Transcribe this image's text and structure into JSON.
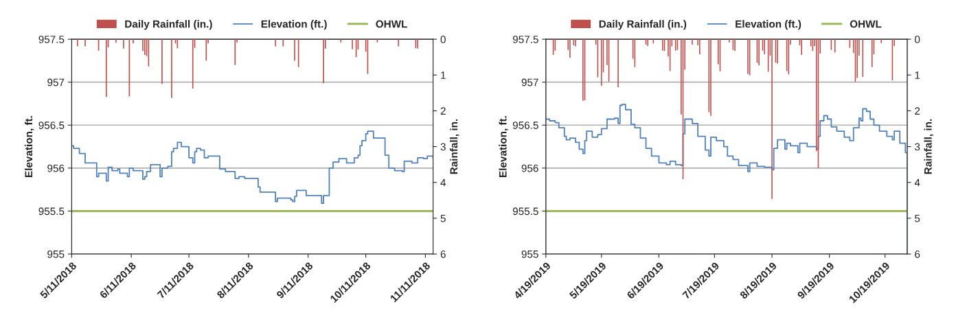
{
  "chart_data": [
    {
      "type": "bar",
      "ylabel": "Elevation, ft.",
      "y2label": "Rainfall, in.",
      "ylim": [
        955,
        957.5
      ],
      "yticks": [
        955,
        955.5,
        956,
        956.5,
        957,
        957.5
      ],
      "y2lim": [
        6,
        0
      ],
      "y2ticks": [
        0,
        1,
        2,
        3,
        4,
        5,
        6
      ],
      "xlim": [
        "2018-05-11",
        "2018-11-15"
      ],
      "xticks": [
        {
          "value": "2018-05-11",
          "label": "5/11/2018"
        },
        {
          "value": "2018-06-11",
          "label": "6/11/2018"
        },
        {
          "value": "2018-07-11",
          "label": "7/11/2018"
        },
        {
          "value": "2018-08-11",
          "label": "8/11/2018"
        },
        {
          "value": "2018-09-11",
          "label": "9/11/2018"
        },
        {
          "value": "2018-10-11",
          "label": "10/11/2018"
        },
        {
          "value": "2018-11-11",
          "label": "11/11/2018"
        }
      ],
      "grid": "y",
      "legend": "top",
      "ref_lines": [
        {
          "axis": "y",
          "value": 955.5,
          "label": "OHWL",
          "color": "#9bbb59"
        }
      ],
      "series": [
        {
          "name": "Daily Rainfall (in.)",
          "axis": "y2",
          "color": "#c0504d",
          "x": [
            "2018-05-14",
            "2018-05-18",
            "2018-05-25",
            "2018-05-29",
            "2018-05-30",
            "2018-06-03",
            "2018-06-07",
            "2018-06-10",
            "2018-06-12",
            "2018-06-17",
            "2018-06-18",
            "2018-06-19",
            "2018-06-20",
            "2018-06-27",
            "2018-07-02",
            "2018-07-04",
            "2018-07-05",
            "2018-07-13",
            "2018-07-14",
            "2018-07-20",
            "2018-07-21",
            "2018-08-04",
            "2018-08-05",
            "2018-08-25",
            "2018-08-29",
            "2018-09-04",
            "2018-09-06",
            "2018-09-19",
            "2018-09-20",
            "2018-09-28",
            "2018-10-04",
            "2018-10-06",
            "2018-10-07",
            "2018-10-11",
            "2018-10-12",
            "2018-10-17",
            "2018-10-28",
            "2018-11-06",
            "2018-11-07"
          ],
          "values": [
            0.2,
            0.2,
            0.32,
            1.61,
            0.23,
            0.1,
            0.26,
            1.6,
            0.12,
            0.33,
            0.44,
            0.47,
            0.76,
            1.25,
            1.64,
            0.12,
            0.25,
            1.38,
            0.24,
            0.6,
            0.12,
            0.72,
            0.09,
            0.2,
            0.2,
            0.6,
            0.78,
            1.23,
            0.26,
            0.09,
            0.28,
            0.5,
            0.29,
            0.35,
            0.97,
            0.09,
            0.2,
            0.25,
            0.26
          ]
        },
        {
          "name": "Elevation (ft.)",
          "type": "step",
          "color": "#4f81bd",
          "x": [
            "2018-05-11",
            "2018-05-12",
            "2018-05-15",
            "2018-05-18",
            "2018-05-24",
            "2018-05-25",
            "2018-05-29",
            "2018-05-30",
            "2018-06-01",
            "2018-06-04",
            "2018-06-05",
            "2018-06-09",
            "2018-06-10",
            "2018-06-12",
            "2018-06-17",
            "2018-06-18",
            "2018-06-19",
            "2018-06-21",
            "2018-06-22",
            "2018-06-26",
            "2018-06-27",
            "2018-06-30",
            "2018-07-02",
            "2018-07-03",
            "2018-07-05",
            "2018-07-07",
            "2018-07-11",
            "2018-07-13",
            "2018-07-14",
            "2018-07-15",
            "2018-07-17",
            "2018-07-19",
            "2018-07-21",
            "2018-07-27",
            "2018-07-30",
            "2018-08-04",
            "2018-08-06",
            "2018-08-09",
            "2018-08-16",
            "2018-08-17",
            "2018-08-25",
            "2018-08-26",
            "2018-09-02",
            "2018-09-03",
            "2018-09-04",
            "2018-09-05",
            "2018-09-10",
            "2018-09-18",
            "2018-09-19",
            "2018-09-21",
            "2018-09-22",
            "2018-09-24",
            "2018-09-27",
            "2018-10-01",
            "2018-10-04",
            "2018-10-05",
            "2018-10-07",
            "2018-10-08",
            "2018-10-09",
            "2018-10-11",
            "2018-10-12",
            "2018-10-15",
            "2018-10-21",
            "2018-10-23",
            "2018-10-26",
            "2018-10-30",
            "2018-10-31",
            "2018-11-04",
            "2018-11-07",
            "2018-11-10",
            "2018-11-12",
            "2018-11-15"
          ],
          "values": [
            956.26,
            956.23,
            956.17,
            956.06,
            955.9,
            955.94,
            955.85,
            956.01,
            955.97,
            955.99,
            955.94,
            955.9,
            956.0,
            955.97,
            955.87,
            955.9,
            955.96,
            956.04,
            956.04,
            955.9,
            956.0,
            956.02,
            956.19,
            956.23,
            956.3,
            956.25,
            956.12,
            956.06,
            956.19,
            956.23,
            956.21,
            956.12,
            956.14,
            955.99,
            955.96,
            955.88,
            955.9,
            955.88,
            955.78,
            955.72,
            955.61,
            955.65,
            955.63,
            955.61,
            955.67,
            955.74,
            955.68,
            955.59,
            955.68,
            955.68,
            956.0,
            956.07,
            956.11,
            956.06,
            956.06,
            956.12,
            956.15,
            956.26,
            956.32,
            956.4,
            956.43,
            956.35,
            956.15,
            956.0,
            955.97,
            955.96,
            956.08,
            956.06,
            956.12,
            956.11,
            956.14,
            956.11
          ]
        }
      ]
    },
    {
      "type": "bar",
      "ylabel": "Elevation, ft.",
      "y2label": "Rainfall, in.",
      "ylim": [
        955,
        957.5
      ],
      "yticks": [
        955,
        955.5,
        956,
        956.5,
        957,
        957.5
      ],
      "y2lim": [
        6,
        0
      ],
      "y2ticks": [
        0,
        1,
        2,
        3,
        4,
        5,
        6
      ],
      "xlim": [
        "2019-04-19",
        "2019-10-31"
      ],
      "xticks": [
        {
          "value": "2019-04-19",
          "label": "4/19/2019"
        },
        {
          "value": "2019-05-19",
          "label": "5/19/2019"
        },
        {
          "value": "2019-06-19",
          "label": "6/19/2019"
        },
        {
          "value": "2019-07-19",
          "label": "7/19/2019"
        },
        {
          "value": "2019-08-19",
          "label": "8/19/2019"
        },
        {
          "value": "2019-09-19",
          "label": "9/19/2019"
        },
        {
          "value": "2019-10-19",
          "label": "10/19/2019"
        }
      ],
      "grid": "y",
      "legend": "top",
      "ref_lines": [
        {
          "axis": "y",
          "value": 955.5,
          "label": "OHWL",
          "color": "#9bbb59"
        }
      ],
      "series": [
        {
          "name": "Daily Rainfall (in.)",
          "axis": "y2",
          "color": "#c0504d",
          "x": [
            "2019-04-23",
            "2019-04-24",
            "2019-05-01",
            "2019-05-02",
            "2019-05-04",
            "2019-05-05",
            "2019-05-09",
            "2019-05-10",
            "2019-05-16",
            "2019-05-17",
            "2019-05-19",
            "2019-05-20",
            "2019-05-22",
            "2019-05-23",
            "2019-05-28",
            "2019-06-05",
            "2019-06-06",
            "2019-06-12",
            "2019-06-13",
            "2019-06-16",
            "2019-06-21",
            "2019-06-22",
            "2019-06-24",
            "2019-06-25",
            "2019-06-26",
            "2019-06-28",
            "2019-06-29",
            "2019-07-01",
            "2019-07-02",
            "2019-07-03",
            "2019-07-07",
            "2019-07-10",
            "2019-07-11",
            "2019-07-16",
            "2019-07-17",
            "2019-07-21",
            "2019-07-22",
            "2019-07-27",
            "2019-07-29",
            "2019-07-30",
            "2019-08-06",
            "2019-08-07",
            "2019-08-11",
            "2019-08-12",
            "2019-08-14",
            "2019-08-15",
            "2019-08-17",
            "2019-08-18",
            "2019-08-19",
            "2019-08-21",
            "2019-08-22",
            "2019-08-27",
            "2019-08-28",
            "2019-08-29",
            "2019-09-03",
            "2019-09-04",
            "2019-09-09",
            "2019-09-10",
            "2019-09-11",
            "2019-09-12",
            "2019-09-13",
            "2019-09-14",
            "2019-09-20",
            "2019-09-22",
            "2019-09-30",
            "2019-10-02",
            "2019-10-03",
            "2019-10-04",
            "2019-10-05",
            "2019-10-07",
            "2019-10-12",
            "2019-10-13",
            "2019-10-17",
            "2019-10-23",
            "2019-10-24"
          ],
          "values": [
            0.44,
            0.32,
            0.3,
            0.52,
            0.17,
            0.2,
            1.72,
            1.71,
            0.15,
            1.06,
            1.3,
            0.93,
            0.72,
            1.18,
            1.34,
            0.55,
            0.78,
            0.15,
            0.19,
            0.12,
            0.32,
            0.33,
            0.48,
            0.89,
            0.2,
            0.32,
            0.3,
            2.1,
            3.91,
            0.85,
            0.15,
            0.17,
            0.42,
            2.04,
            2.14,
            0.7,
            0.9,
            0.09,
            0.3,
            0.33,
            0.97,
            1.01,
            0.66,
            0.73,
            0.32,
            0.42,
            0.91,
            0.46,
            4.46,
            0.65,
            0.68,
            0.89,
            0.98,
            0.15,
            0.17,
            0.44,
            0.2,
            0.33,
            0.19,
            3.13,
            3.6,
            0.4,
            0.3,
            0.37,
            0.24,
            0.38,
            1.19,
            1.08,
            0.46,
            1.05,
            0.78,
            0.42,
            0.11,
            1.15,
            0.19
          ]
        },
        {
          "name": "Elevation (ft.)",
          "type": "step",
          "color": "#4f81bd",
          "x": [
            "2019-04-19",
            "2019-04-21",
            "2019-04-24",
            "2019-04-26",
            "2019-04-29",
            "2019-04-30",
            "2019-05-02",
            "2019-05-05",
            "2019-05-07",
            "2019-05-09",
            "2019-05-10",
            "2019-05-11",
            "2019-05-14",
            "2019-05-17",
            "2019-05-19",
            "2019-05-22",
            "2019-05-26",
            "2019-05-28",
            "2019-05-29",
            "2019-05-30",
            "2019-06-01",
            "2019-06-04",
            "2019-06-06",
            "2019-06-09",
            "2019-06-12",
            "2019-06-15",
            "2019-06-19",
            "2019-06-23",
            "2019-06-25",
            "2019-06-28",
            "2019-07-01",
            "2019-07-02",
            "2019-07-03",
            "2019-07-07",
            "2019-07-10",
            "2019-07-14",
            "2019-07-16",
            "2019-07-17",
            "2019-07-20",
            "2019-07-24",
            "2019-07-26",
            "2019-07-29",
            "2019-08-01",
            "2019-08-06",
            "2019-08-07",
            "2019-08-11",
            "2019-08-15",
            "2019-08-19",
            "2019-08-20",
            "2019-08-22",
            "2019-08-26",
            "2019-08-27",
            "2019-08-29",
            "2019-09-02",
            "2019-09-03",
            "2019-09-07",
            "2019-09-12",
            "2019-09-13",
            "2019-09-14",
            "2019-09-16",
            "2019-09-18",
            "2019-09-20",
            "2019-09-23",
            "2019-09-27",
            "2019-09-30",
            "2019-10-02",
            "2019-10-05",
            "2019-10-06",
            "2019-10-07",
            "2019-10-09",
            "2019-10-11",
            "2019-10-13",
            "2019-10-16",
            "2019-10-20",
            "2019-10-23",
            "2019-10-24",
            "2019-10-27",
            "2019-10-30",
            "2019-10-31"
          ],
          "values": [
            956.57,
            956.55,
            956.53,
            956.47,
            956.37,
            956.33,
            956.35,
            956.3,
            956.22,
            956.17,
            956.32,
            956.43,
            956.36,
            956.39,
            956.46,
            956.57,
            956.58,
            956.52,
            956.73,
            956.74,
            956.68,
            956.51,
            956.47,
            956.35,
            956.23,
            956.14,
            956.06,
            956.04,
            956.08,
            956.04,
            956.03,
            956.4,
            956.57,
            956.52,
            956.37,
            956.21,
            956.14,
            956.36,
            956.32,
            956.25,
            956.14,
            956.1,
            956.03,
            955.96,
            956.06,
            956.02,
            956.01,
            955.98,
            956.23,
            956.33,
            956.22,
            956.29,
            956.26,
            956.18,
            956.29,
            956.25,
            956.22,
            956.37,
            956.55,
            956.61,
            956.57,
            956.48,
            956.43,
            956.36,
            956.32,
            956.47,
            956.58,
            956.55,
            956.69,
            956.66,
            956.57,
            956.5,
            956.43,
            956.37,
            956.33,
            956.43,
            956.29,
            956.18,
            955.0
          ]
        }
      ]
    }
  ]
}
